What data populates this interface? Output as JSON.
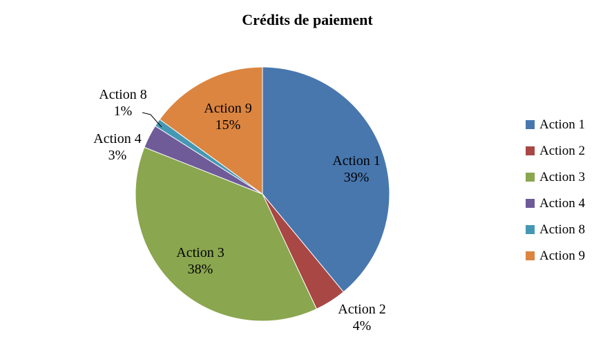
{
  "title": "Crédits de paiement",
  "chart_data": {
    "type": "pie",
    "title": "Crédits de paiement",
    "categories": [
      "Action 1",
      "Action 2",
      "Action 3",
      "Action 4",
      "Action 8",
      "Action 9"
    ],
    "values": [
      39,
      4,
      38,
      3,
      1,
      15
    ],
    "value_unit": "%",
    "colors": [
      "#4877AE",
      "#A84743",
      "#8AA64F",
      "#6E5B97",
      "#4598B4",
      "#DB8540"
    ],
    "slice_labels": [
      "Action 1 39%",
      "Action 2 4%",
      "Action 3 38%",
      "Action 4 3%",
      "Action 8 1%",
      "Action 9 15%"
    ],
    "legend_entries": [
      "Action 1",
      "Action 2",
      "Action 3",
      "Action 4",
      "Action 8",
      "Action 9"
    ],
    "legend_position": "right",
    "start_angle_deg": 0,
    "direction": "clockwise",
    "background": "#ffffff"
  }
}
